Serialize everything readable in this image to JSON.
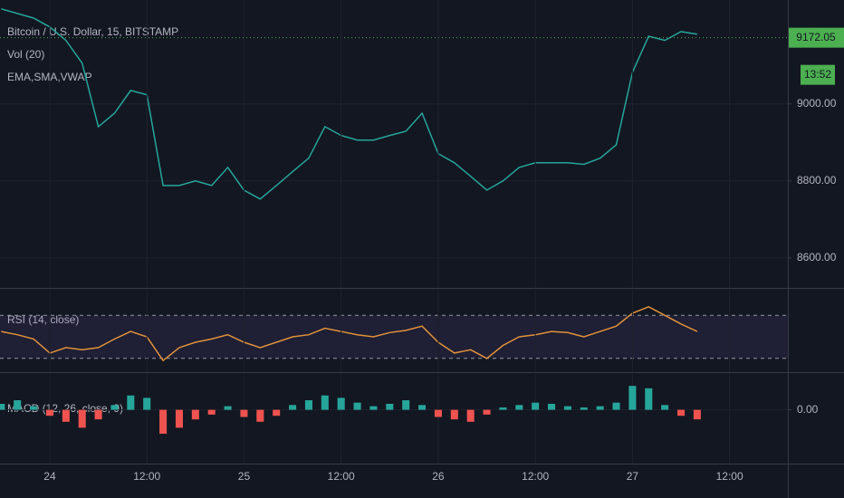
{
  "chart_data": [
    {
      "type": "line",
      "title": "Bitcoin / U.S. Dollar, 15, BITSTAMP",
      "annotations": [
        "Vol (20)",
        "EMA,SMA,VWAP"
      ],
      "last_price": {
        "value": 9172.05,
        "label": "9172.05"
      },
      "countdown": "13:52",
      "x": [
        -6,
        -4,
        -2,
        0,
        2,
        4,
        6,
        8,
        10,
        12,
        14,
        16,
        18,
        20,
        22,
        24,
        26,
        28,
        30,
        32,
        34,
        36,
        38,
        40,
        42,
        44,
        46,
        48,
        50,
        52,
        54,
        56,
        58,
        60,
        62,
        64,
        66,
        68,
        70,
        72,
        74,
        76,
        78,
        80
      ],
      "series": [
        {
          "name": "Bitcoin / U.S. Dollar",
          "color": "#26a69a",
          "values": [
            9247,
            9235,
            9223,
            9200,
            9165,
            9106,
            8941,
            8976,
            9035,
            9024,
            8788,
            8788,
            8800,
            8788,
            8835,
            8776,
            8753,
            8788,
            8824,
            8859,
            8941,
            8918,
            8906,
            8906,
            8918,
            8929,
            8976,
            8871,
            8847,
            8812,
            8776,
            8800,
            8835,
            8847,
            8847,
            8847,
            8843,
            8859,
            8894,
            9082,
            9176,
            9165,
            9188,
            9181
          ]
        }
      ],
      "xlim": [
        -6.15,
        91.2
      ],
      "ylim": [
        8522,
        9270
      ],
      "yticks": [
        {
          "value": 9000,
          "label": "9000.00"
        },
        {
          "value": 8800,
          "label": "8800.00"
        },
        {
          "value": 8600,
          "label": "8600.00"
        }
      ]
    },
    {
      "type": "line",
      "title": "RSI (14, close)",
      "bands": [
        30,
        70
      ],
      "x": [
        -6,
        -4,
        -2,
        0,
        2,
        4,
        6,
        8,
        10,
        12,
        14,
        16,
        18,
        20,
        22,
        24,
        26,
        28,
        30,
        32,
        34,
        36,
        38,
        40,
        42,
        44,
        46,
        48,
        50,
        52,
        54,
        56,
        58,
        60,
        62,
        64,
        66,
        68,
        70,
        72,
        74,
        76,
        78,
        80
      ],
      "series": [
        {
          "name": "RSI",
          "color": "#e0923a",
          "values": [
            55,
            52,
            48,
            35,
            40,
            38,
            40,
            48,
            55,
            50,
            28,
            40,
            45,
            48,
            52,
            45,
            40,
            45,
            50,
            52,
            58,
            55,
            52,
            50,
            54,
            56,
            60,
            45,
            35,
            38,
            30,
            42,
            50,
            52,
            55,
            54,
            50,
            55,
            60,
            72,
            78,
            70,
            62,
            55
          ]
        }
      ],
      "xlim": [
        -6.15,
        91.2
      ],
      "ylim": [
        17.2,
        93.8
      ]
    },
    {
      "type": "bar",
      "title": "MACD (12, 26, close, 9)",
      "colors": {
        "positive": "#26a69a",
        "negative": "#ef5350"
      },
      "x": [
        -6,
        -4,
        -2,
        0,
        2,
        4,
        6,
        8,
        10,
        12,
        14,
        16,
        18,
        20,
        22,
        24,
        26,
        28,
        30,
        32,
        34,
        36,
        38,
        40,
        42,
        44,
        46,
        48,
        50,
        52,
        54,
        56,
        58,
        60,
        62,
        64,
        66,
        68,
        70,
        72,
        74,
        76,
        78,
        80
      ],
      "values": [
        5,
        8,
        3,
        -5,
        -10,
        -15,
        -8,
        4,
        12,
        10,
        -20,
        -15,
        -8,
        -4,
        3,
        -6,
        -10,
        -5,
        4,
        8,
        12,
        10,
        6,
        3,
        5,
        8,
        4,
        -6,
        -8,
        -10,
        -4,
        2,
        4,
        6,
        5,
        3,
        2,
        3,
        6,
        20,
        18,
        4,
        -5,
        -8
      ],
      "xlim": [
        -6.15,
        91.2
      ],
      "ylim": [
        -45,
        30
      ],
      "yticks": [
        {
          "value": 0,
          "label": "0.00"
        }
      ],
      "xticks": [
        {
          "value": 0,
          "label": "24"
        },
        {
          "value": 12,
          "label": "12:00"
        },
        {
          "value": 24,
          "label": "25"
        },
        {
          "value": 36,
          "label": "12:00"
        },
        {
          "value": 48,
          "label": "26"
        },
        {
          "value": 60,
          "label": "12:00"
        },
        {
          "value": 72,
          "label": "27"
        },
        {
          "value": 84,
          "label": "12:00"
        }
      ]
    }
  ]
}
